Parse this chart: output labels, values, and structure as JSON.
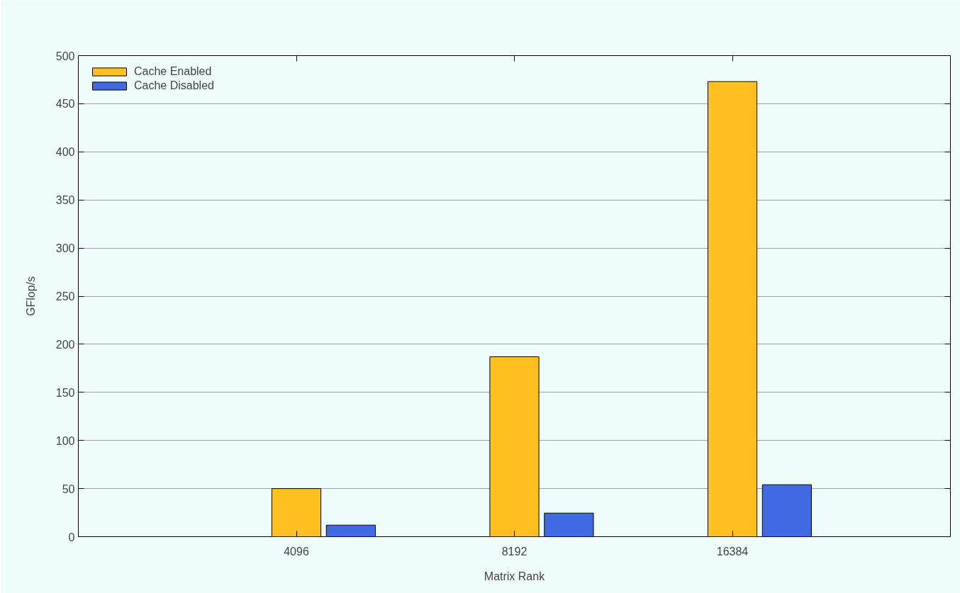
{
  "chart_data": {
    "type": "bar",
    "xlabel": "Matrix Rank",
    "ylabel": "GFlop/s",
    "categories": [
      "4096",
      "8192",
      "16384"
    ],
    "series": [
      {
        "name": "Cache Enabled",
        "color": "#ffc020",
        "values": [
          50,
          187,
          473
        ]
      },
      {
        "name": "Cache Disabled",
        "color": "#4169e1",
        "values": [
          12,
          24.5,
          54
        ]
      }
    ],
    "ylim": [
      0,
      500
    ],
    "yticks": [
      0,
      50,
      100,
      150,
      200,
      250,
      300,
      350,
      400,
      450,
      500
    ],
    "grid": "y",
    "legend": "top left"
  }
}
